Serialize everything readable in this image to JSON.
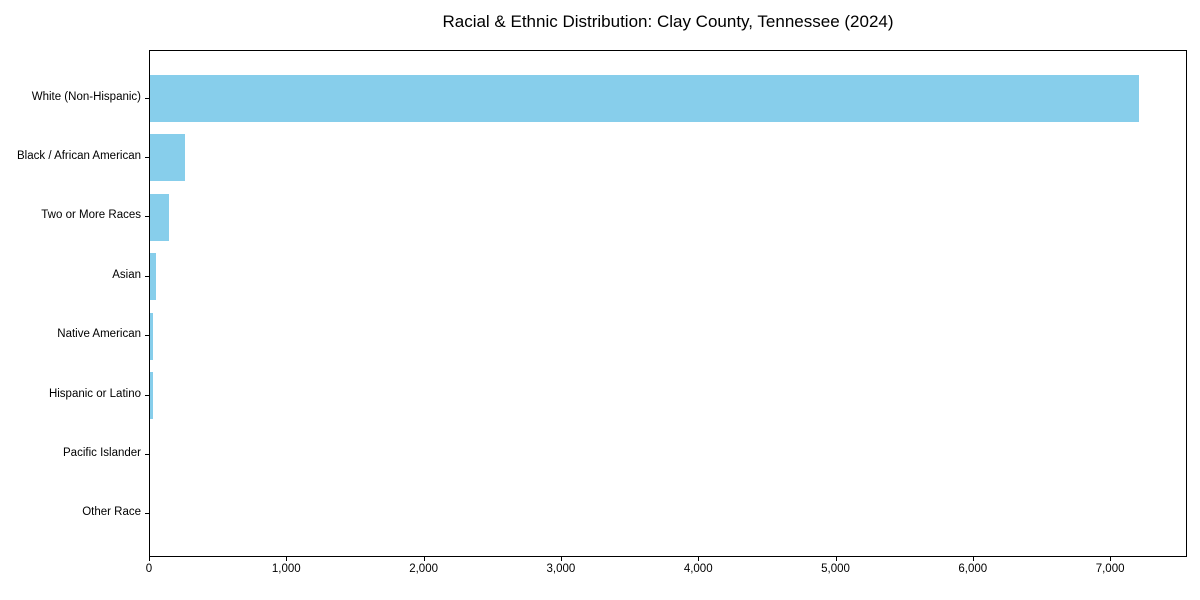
{
  "chart_data": {
    "type": "bar",
    "orientation": "horizontal",
    "title": "Racial & Ethnic Distribution: Clay County, Tennessee (2024)",
    "categories": [
      "White (Non-Hispanic)",
      "Black / African American",
      "Two or More Races",
      "Asian",
      "Native American",
      "Hispanic or Latino",
      "Pacific Islander",
      "Other Race"
    ],
    "values": [
      7200,
      255,
      140,
      45,
      20,
      25,
      0,
      0
    ],
    "xlabel": "",
    "ylabel": "",
    "xlim": [
      0,
      7560
    ],
    "x_ticks": [
      0,
      1000,
      2000,
      3000,
      4000,
      5000,
      6000,
      7000
    ],
    "x_tick_labels": [
      "0",
      "1,000",
      "2,000",
      "3,000",
      "4,000",
      "5,000",
      "6,000",
      "7,000"
    ],
    "bar_color": "#87CEEB",
    "axis_color": "#000000",
    "text_color": "#000000",
    "background_color": "#ffffff",
    "grid": false,
    "legend": false
  }
}
